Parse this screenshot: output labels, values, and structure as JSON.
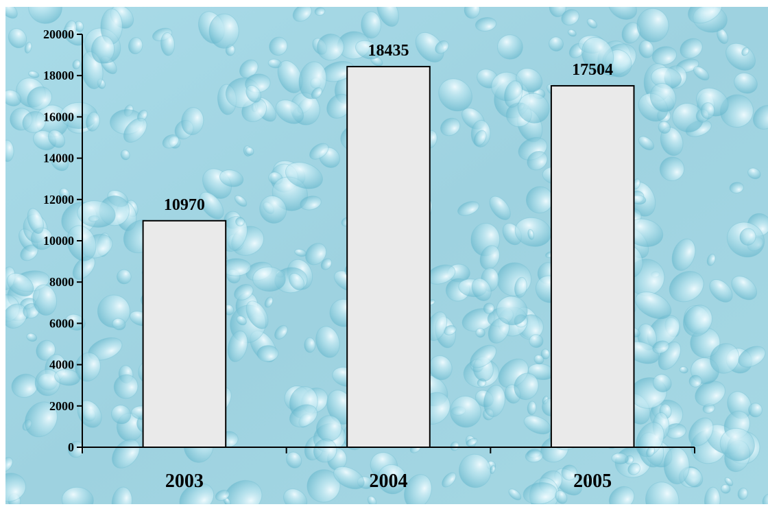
{
  "chart_data": {
    "type": "bar",
    "categories": [
      "2003",
      "2004",
      "2005"
    ],
    "values": [
      10970,
      18435,
      17504
    ],
    "data_labels": [
      "10970",
      "18435",
      "17504"
    ],
    "title": "",
    "xlabel": "",
    "ylabel": "",
    "ylim": [
      0,
      20000
    ],
    "y_tick_step": 2000,
    "y_ticks": [
      "0",
      "2000",
      "4000",
      "6000",
      "8000",
      "10000",
      "12000",
      "14000",
      "16000",
      "18000",
      "20000"
    ],
    "grid": false,
    "legend": "none",
    "background": "water-droplet texture",
    "colors": {
      "bar_fill": "#eaeaea",
      "bar_stroke": "#000000",
      "background_base": "#9fd3e2",
      "text": "#000000"
    }
  }
}
